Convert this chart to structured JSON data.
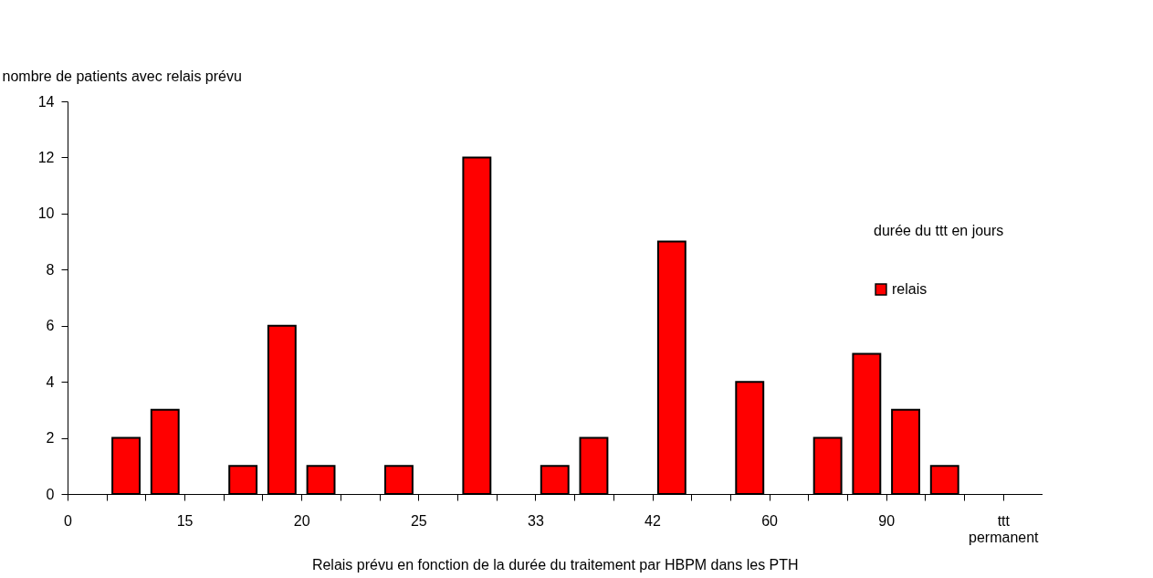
{
  "chart_data": {
    "type": "bar",
    "xlabel": "Relais prévu en fonction de la durée du traitement par HBPM dans les PTH",
    "ylabel": "nombre de patients avec relais prévu",
    "legend_title": "durée du ttt en jours",
    "categories": [
      "0",
      null,
      null,
      "15",
      null,
      null,
      "20",
      null,
      null,
      "25",
      null,
      null,
      "33",
      null,
      null,
      "42",
      null,
      null,
      "60",
      null,
      null,
      "90",
      null,
      null,
      "ttt permanent"
    ],
    "series": [
      {
        "name": "relais",
        "color": "#ff0000",
        "values": [
          null,
          2,
          3,
          null,
          1,
          6,
          1,
          null,
          1,
          null,
          12,
          null,
          1,
          2,
          null,
          9,
          null,
          4,
          null,
          2,
          5,
          3,
          1,
          null,
          null
        ]
      }
    ],
    "ylim": [
      0,
      14
    ],
    "yticks": [
      0,
      2,
      4,
      6,
      8,
      10,
      12,
      14
    ],
    "grid": false,
    "legend": "right"
  }
}
